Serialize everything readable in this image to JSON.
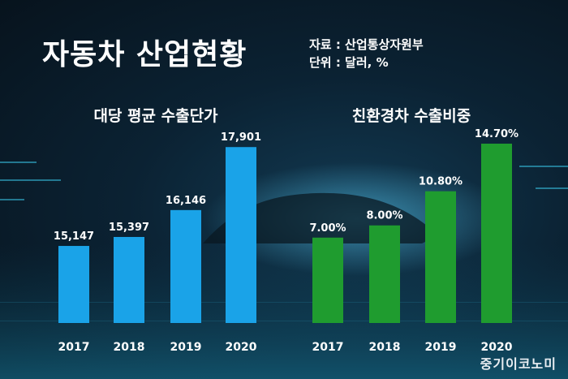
{
  "header": {
    "title": "자동차 산업현황",
    "source": "자료 : 산업통상자원부",
    "unit": "단위 : 달러, %"
  },
  "brand": "중기이코노미",
  "colors": {
    "blue_bar": "#1aa3e8",
    "green_bar": "#1f9c2f",
    "text": "#ffffff"
  },
  "chart_data": [
    {
      "type": "bar",
      "title": "대당 평균 수출단가",
      "categories": [
        "2017",
        "2018",
        "2019",
        "2020"
      ],
      "values": [
        15147,
        15397,
        16146,
        17901
      ],
      "value_labels": [
        "15,147",
        "15,397",
        "16,146",
        "17,901"
      ],
      "ylim": [
        13000,
        18200
      ],
      "grid": false
    },
    {
      "type": "bar",
      "title": "친환경차 수출비중",
      "categories": [
        "2017",
        "2018",
        "2019",
        "2020"
      ],
      "values": [
        7.0,
        8.0,
        10.8,
        14.7
      ],
      "value_labels": [
        "7.00%",
        "8.00%",
        "10.80%",
        "14.70%"
      ],
      "ylim": [
        0,
        15.3
      ],
      "grid": false
    }
  ]
}
